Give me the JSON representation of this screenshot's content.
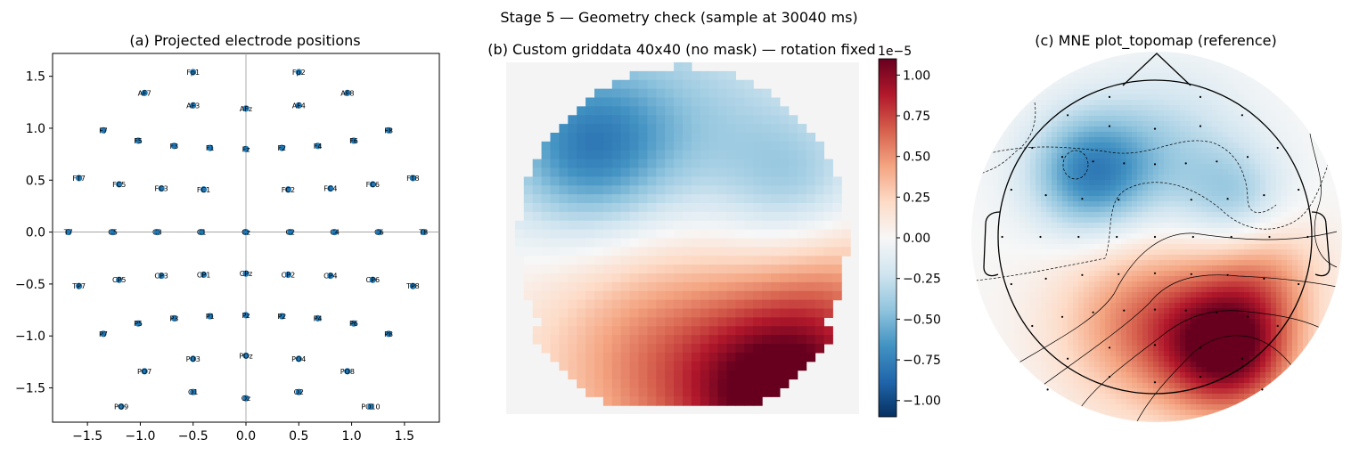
{
  "figure": {
    "suptitle": "Stage 5 — Geometry check (sample at 30040 ms)"
  },
  "chart_data": [
    {
      "type": "scatter",
      "title": "(a) Projected electrode positions",
      "xlabel": "",
      "ylabel": "",
      "xlim": [
        -1.83,
        1.83
      ],
      "ylim": [
        -1.83,
        1.72
      ],
      "xticks": [
        "−1.5",
        "−1.0",
        "−0.5",
        "0.0",
        "0.5",
        "1.0",
        "1.5"
      ],
      "xtick_values": [
        -1.5,
        -1.0,
        -0.5,
        0.0,
        0.5,
        1.0,
        1.5
      ],
      "yticks": [
        "−1.5",
        "−1.0",
        "−0.5",
        "0.0",
        "0.5",
        "1.0",
        "1.5"
      ],
      "ytick_values": [
        -1.5,
        -1.0,
        -0.5,
        0.0,
        0.5,
        1.0,
        1.5
      ],
      "marker_color": "#1f77b4",
      "points": [
        {
          "name": "Fp1",
          "x": -0.5,
          "y": 1.54
        },
        {
          "name": "Fp2",
          "x": 0.5,
          "y": 1.54
        },
        {
          "name": "AF7",
          "x": -0.96,
          "y": 1.34
        },
        {
          "name": "AF3",
          "x": -0.5,
          "y": 1.22
        },
        {
          "name": "AFz",
          "x": 0.0,
          "y": 1.19
        },
        {
          "name": "AF4",
          "x": 0.5,
          "y": 1.22
        },
        {
          "name": "AF8",
          "x": 0.96,
          "y": 1.34
        },
        {
          "name": "F7",
          "x": -1.35,
          "y": 0.98
        },
        {
          "name": "F5",
          "x": -1.02,
          "y": 0.88
        },
        {
          "name": "F3",
          "x": -0.68,
          "y": 0.83
        },
        {
          "name": "F1",
          "x": -0.34,
          "y": 0.81
        },
        {
          "name": "Fz",
          "x": 0.0,
          "y": 0.8
        },
        {
          "name": "F2",
          "x": 0.34,
          "y": 0.81
        },
        {
          "name": "F4",
          "x": 0.68,
          "y": 0.83
        },
        {
          "name": "F6",
          "x": 1.02,
          "y": 0.88
        },
        {
          "name": "F8",
          "x": 1.35,
          "y": 0.98
        },
        {
          "name": "FT7",
          "x": -1.58,
          "y": 0.52
        },
        {
          "name": "FC5",
          "x": -1.2,
          "y": 0.46
        },
        {
          "name": "FC3",
          "x": -0.8,
          "y": 0.42
        },
        {
          "name": "FC1",
          "x": -0.4,
          "y": 0.41
        },
        {
          "name": "FC2",
          "x": 0.4,
          "y": 0.41
        },
        {
          "name": "FC4",
          "x": 0.8,
          "y": 0.42
        },
        {
          "name": "FC6",
          "x": 1.2,
          "y": 0.46
        },
        {
          "name": "FT8",
          "x": 1.58,
          "y": 0.52
        },
        {
          "name": "T7",
          "x": -1.68,
          "y": 0.0
        },
        {
          "name": "C5",
          "x": -1.26,
          "y": 0.0
        },
        {
          "name": "C3",
          "x": -0.84,
          "y": 0.0
        },
        {
          "name": "C1",
          "x": -0.42,
          "y": 0.0
        },
        {
          "name": "Cz",
          "x": 0.0,
          "y": 0.0
        },
        {
          "name": "C2",
          "x": 0.42,
          "y": 0.0
        },
        {
          "name": "C4",
          "x": 0.84,
          "y": 0.0
        },
        {
          "name": "C6",
          "x": 1.26,
          "y": 0.0
        },
        {
          "name": "T8",
          "x": 1.68,
          "y": 0.0
        },
        {
          "name": "TP7",
          "x": -1.58,
          "y": -0.52
        },
        {
          "name": "CP5",
          "x": -1.2,
          "y": -0.46
        },
        {
          "name": "CP3",
          "x": -0.8,
          "y": -0.42
        },
        {
          "name": "CP1",
          "x": -0.4,
          "y": -0.41
        },
        {
          "name": "CPz",
          "x": 0.0,
          "y": -0.4
        },
        {
          "name": "CP2",
          "x": 0.4,
          "y": -0.41
        },
        {
          "name": "CP4",
          "x": 0.8,
          "y": -0.42
        },
        {
          "name": "CP6",
          "x": 1.2,
          "y": -0.46
        },
        {
          "name": "TP8",
          "x": 1.58,
          "y": -0.52
        },
        {
          "name": "P7",
          "x": -1.35,
          "y": -0.98
        },
        {
          "name": "P5",
          "x": -1.02,
          "y": -0.88
        },
        {
          "name": "P3",
          "x": -0.68,
          "y": -0.83
        },
        {
          "name": "P1",
          "x": -0.34,
          "y": -0.81
        },
        {
          "name": "Pz",
          "x": 0.0,
          "y": -0.8
        },
        {
          "name": "P2",
          "x": 0.34,
          "y": -0.81
        },
        {
          "name": "P4",
          "x": 0.68,
          "y": -0.83
        },
        {
          "name": "P6",
          "x": 1.02,
          "y": -0.88
        },
        {
          "name": "P8",
          "x": 1.35,
          "y": -0.98
        },
        {
          "name": "PO7",
          "x": -0.96,
          "y": -1.34
        },
        {
          "name": "PO3",
          "x": -0.5,
          "y": -1.22
        },
        {
          "name": "POz",
          "x": 0.0,
          "y": -1.19
        },
        {
          "name": "PO4",
          "x": 0.5,
          "y": -1.22
        },
        {
          "name": "PO8",
          "x": 0.96,
          "y": -1.34
        },
        {
          "name": "O1",
          "x": -0.5,
          "y": -1.54
        },
        {
          "name": "Oz",
          "x": 0.0,
          "y": -1.6
        },
        {
          "name": "O2",
          "x": 0.5,
          "y": -1.54
        },
        {
          "name": "PO9",
          "x": -1.18,
          "y": -1.68
        },
        {
          "name": "PO10",
          "x": 1.18,
          "y": -1.68
        }
      ]
    },
    {
      "type": "heatmap",
      "title": "(b) Custom griddata 40x40 (no mask) — rotation fixed",
      "grid": [
        40,
        40
      ],
      "colormap": "RdBu_r",
      "background": "#f4f4f4",
      "colorbar": {
        "offset_label": "1e−5",
        "range": [
          -1.1,
          1.1
        ],
        "ticks": [
          "1.00",
          "0.75",
          "0.50",
          "0.25",
          "0.00",
          "−0.25",
          "−0.50",
          "−0.75",
          "−1.00"
        ],
        "tick_values": [
          1.0,
          0.75,
          0.5,
          0.25,
          0.0,
          -0.25,
          -0.5,
          -0.75,
          -1.0
        ]
      },
      "field_sources": [
        {
          "x": -0.55,
          "y": 0.52,
          "amp": -0.7,
          "sigma": 0.35
        },
        {
          "x": 0.65,
          "y": 0.3,
          "amp": -0.35,
          "sigma": 0.3
        },
        {
          "x": 0.1,
          "y": 0.7,
          "amp": -0.3,
          "sigma": 0.45
        },
        {
          "x": 0.6,
          "y": -0.92,
          "amp": 1.05,
          "sigma": 0.38
        },
        {
          "x": -0.1,
          "y": -0.7,
          "amp": 0.55,
          "sigma": 0.5
        },
        {
          "x": 0.9,
          "y": -0.3,
          "amp": 0.35,
          "sigma": 0.35
        }
      ]
    },
    {
      "type": "heatmap",
      "title": "(c) MNE plot_topomap (reference)",
      "colormap": "RdBu_r"
    }
  ]
}
